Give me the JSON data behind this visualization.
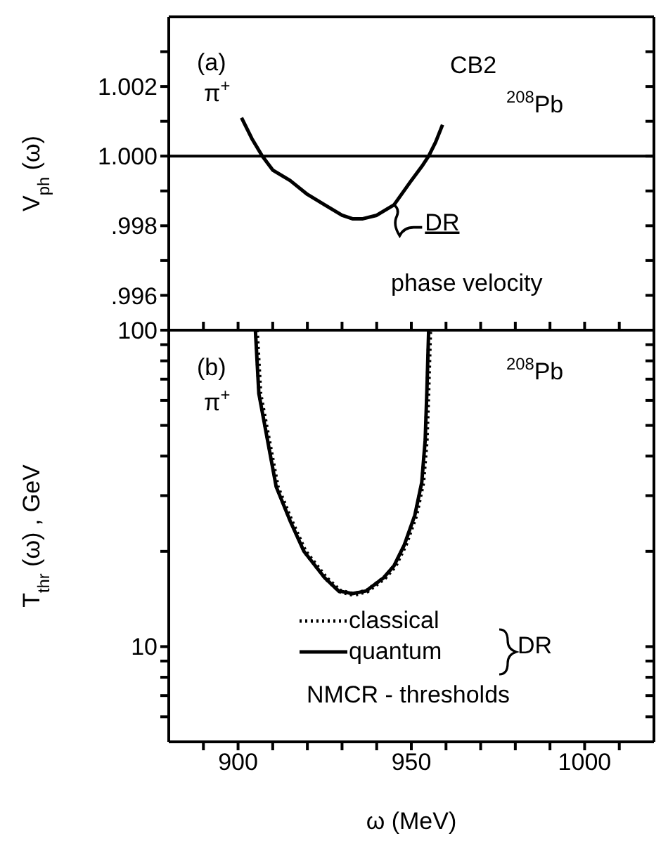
{
  "chart_data": [
    {
      "type": "line",
      "ylabel": "V$_{ph}$ (ω)",
      "xlim": [
        880,
        1020
      ],
      "xticks": [
        {
          "value": 890,
          "label": null
        },
        {
          "value": 900,
          "label": null
        },
        {
          "value": 910,
          "label": null
        },
        {
          "value": 920,
          "label": null
        },
        {
          "value": 930,
          "label": null
        },
        {
          "value": 940,
          "label": null
        },
        {
          "value": 950,
          "label": null
        },
        {
          "value": 960,
          "label": null
        },
        {
          "value": 970,
          "label": null
        },
        {
          "value": 980,
          "label": null
        },
        {
          "value": 990,
          "label": null
        },
        {
          "value": 1000,
          "label": null
        },
        {
          "value": 1010,
          "label": null
        }
      ],
      "ylim": [
        0.995,
        1.004
      ],
      "yticks": [
        {
          "value": 0.996,
          "label": ".996"
        },
        {
          "value": 0.997,
          "label": null
        },
        {
          "value": 0.998,
          "label": ".998"
        },
        {
          "value": 0.999,
          "label": null
        },
        {
          "value": 1.0,
          "label": "1.000"
        },
        {
          "value": 1.001,
          "label": null
        },
        {
          "value": 1.002,
          "label": "1.002"
        },
        {
          "value": 1.003,
          "label": null
        }
      ],
      "tick_labels": "y",
      "marker": "none",
      "ref_lines": [
        {
          "axis": "y",
          "value": 1.0
        }
      ],
      "annotations": [
        "(a)",
        "π$^{+}$",
        "CB2",
        "$^{208}$Pb",
        {
          "text": "DR",
          "x": 945,
          "y": 0.9986
        },
        "phase velocity"
      ],
      "series": [
        {
          "color": "#000000",
          "line_style": "solid",
          "x": [
            901,
            904,
            907,
            910,
            915,
            920,
            925,
            930,
            933,
            936,
            940,
            945,
            950,
            953,
            955,
            957,
            959
          ],
          "values": [
            1.0011,
            1.0005,
            1.0,
            0.9996,
            0.9993,
            0.9989,
            0.9986,
            0.9983,
            0.9982,
            0.9982,
            0.9983,
            0.9986,
            0.9993,
            0.9997,
            1.0,
            1.0004,
            1.0009
          ]
        }
      ]
    },
    {
      "type": "line",
      "xlabel": "ω (MeV)",
      "ylabel": "T$_{thr}$ (ω) , GeV",
      "log": "y",
      "xlim": [
        880,
        1020
      ],
      "xticks": [
        {
          "value": 890,
          "label": null
        },
        900,
        {
          "value": 910,
          "label": null
        },
        {
          "value": 920,
          "label": null
        },
        {
          "value": 930,
          "label": null
        },
        {
          "value": 940,
          "label": null
        },
        950,
        {
          "value": 960,
          "label": null
        },
        {
          "value": 970,
          "label": null
        },
        {
          "value": 980,
          "label": null
        },
        {
          "value": 990,
          "label": null
        },
        1000,
        {
          "value": 1010,
          "label": null
        }
      ],
      "ylim": [
        5,
        100
      ],
      "yticks": [
        {
          "value": 6,
          "label": null
        },
        {
          "value": 7,
          "label": null
        },
        {
          "value": 8,
          "label": null
        },
        {
          "value": 9,
          "label": null
        },
        10,
        {
          "value": 20,
          "label": null
        },
        {
          "value": 30,
          "label": null
        },
        {
          "value": 40,
          "label": null
        },
        {
          "value": 50,
          "label": null
        },
        {
          "value": 60,
          "label": null
        },
        {
          "value": 70,
          "label": null
        },
        {
          "value": 80,
          "label": null
        },
        {
          "value": 90,
          "label": null
        },
        100
      ],
      "marker": "none",
      "legend": "bottom",
      "annotations": [
        "(b)",
        "π$^{+}$",
        "$^{208}$Pb",
        "DR",
        "NMCR - thresholds"
      ],
      "series": [
        {
          "name": "classical",
          "color": "#000000",
          "line_style": "dotted",
          "x": [
            905.3,
            906.3,
            909.3,
            911.3,
            915.3,
            919.3,
            925.3,
            929.3,
            933.3,
            937.3,
            942.3,
            945.3,
            948.3,
            951.3,
            953.3,
            954.3,
            954.8,
            955.3
          ],
          "values": [
            100,
            63,
            42,
            32,
            25,
            20,
            16.5,
            15,
            14.6,
            15,
            16.5,
            18,
            21,
            26,
            33,
            45,
            65,
            100
          ]
        },
        {
          "name": "quantum",
          "color": "#000000",
          "line_style": "solid",
          "x": [
            905,
            906,
            909,
            911,
            915,
            919,
            925,
            929,
            933,
            937,
            942,
            945,
            948,
            951,
            953,
            954,
            954.5,
            955
          ],
          "values": [
            100,
            63,
            42,
            32,
            25,
            20,
            16.5,
            15,
            14.7,
            15,
            16.5,
            18,
            21,
            26,
            33,
            45,
            65,
            100
          ]
        }
      ]
    }
  ]
}
